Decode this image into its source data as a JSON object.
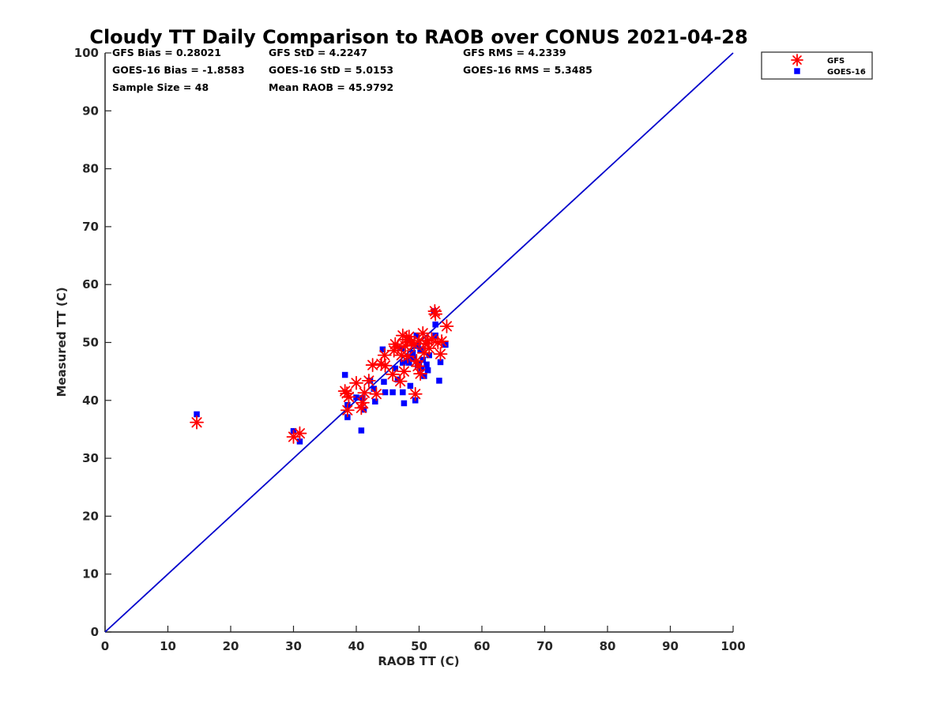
{
  "chart_data": {
    "type": "scatter",
    "title": "Cloudy TT Daily Comparison to RAOB over CONUS 2021-04-28",
    "xlabel": "RAOB TT (C)",
    "ylabel": "Measured TT (C)",
    "xlim": [
      0,
      100
    ],
    "ylim": [
      0,
      100
    ],
    "x_ticks": [
      "0",
      "10",
      "20",
      "30",
      "40",
      "50",
      "60",
      "70",
      "80",
      "90",
      "100"
    ],
    "y_ticks": [
      "0",
      "10",
      "20",
      "30",
      "40",
      "50",
      "60",
      "70",
      "80",
      "90",
      "100"
    ],
    "grid": false,
    "legend_position": "outside-top-right",
    "reference_line": {
      "x": [
        0,
        100
      ],
      "y": [
        0,
        100
      ],
      "color": "#0000cc"
    },
    "stats": [
      {
        "text": "GFS Bias = 0.28021"
      },
      {
        "text": "GFS StD = 4.2247"
      },
      {
        "text": "GFS RMS = 4.2339"
      },
      {
        "text": "GOES-16 Bias = -1.8583"
      },
      {
        "text": "GOES-16 StD = 5.0153"
      },
      {
        "text": "GOES-16 RMS = 5.3485"
      },
      {
        "text": "Sample Size = 48"
      },
      {
        "text": "Mean RAOB = 45.9792"
      }
    ],
    "series": [
      {
        "name": "GFS",
        "marker": "asterisk",
        "color": "#ff0000",
        "points": [
          [
            14.6,
            36.2
          ],
          [
            30.0,
            33.7
          ],
          [
            31.0,
            34.3
          ],
          [
            38.2,
            41.6
          ],
          [
            38.5,
            41.2
          ],
          [
            38.8,
            40.6
          ],
          [
            38.6,
            38.3
          ],
          [
            40.0,
            43.0
          ],
          [
            40.8,
            38.7
          ],
          [
            41.0,
            39.6
          ],
          [
            41.3,
            41.3
          ],
          [
            42.0,
            43.4
          ],
          [
            42.6,
            46.1
          ],
          [
            43.2,
            41.1
          ],
          [
            44.0,
            46.3
          ],
          [
            44.6,
            46.0
          ],
          [
            44.5,
            47.8
          ],
          [
            45.8,
            44.5
          ],
          [
            46.2,
            49.7
          ],
          [
            46.6,
            49.2
          ],
          [
            47.0,
            43.3
          ],
          [
            47.2,
            47.8
          ],
          [
            47.4,
            51.2
          ],
          [
            47.6,
            45.0
          ],
          [
            48.0,
            50.5
          ],
          [
            48.4,
            51.0
          ],
          [
            48.8,
            50.0
          ],
          [
            49.2,
            49.6
          ],
          [
            49.4,
            41.1
          ],
          [
            49.6,
            46.8
          ],
          [
            50.0,
            50.3
          ],
          [
            50.2,
            44.6
          ],
          [
            50.6,
            51.6
          ],
          [
            51.0,
            49.8
          ],
          [
            51.4,
            50.3
          ],
          [
            52.0,
            50.6
          ],
          [
            52.5,
            55.4
          ],
          [
            52.6,
            54.9
          ],
          [
            53.0,
            50.0
          ],
          [
            53.4,
            48.0
          ],
          [
            53.6,
            50.2
          ],
          [
            54.4,
            52.8
          ],
          [
            48.2,
            47.6
          ],
          [
            50.8,
            48.2
          ],
          [
            46.0,
            48.6
          ],
          [
            49.8,
            45.9
          ],
          [
            51.6,
            49.0
          ],
          [
            47.8,
            49.4
          ]
        ]
      },
      {
        "name": "GOES-16",
        "marker": "square",
        "color": "#0000ff",
        "points": [
          [
            14.6,
            37.6
          ],
          [
            30.0,
            34.7
          ],
          [
            31.0,
            32.9
          ],
          [
            38.2,
            44.4
          ],
          [
            38.6,
            39.2
          ],
          [
            38.6,
            37.1
          ],
          [
            40.0,
            40.5
          ],
          [
            40.8,
            34.8
          ],
          [
            41.0,
            40.4
          ],
          [
            41.2,
            38.4
          ],
          [
            42.2,
            43.4
          ],
          [
            42.8,
            42.0
          ],
          [
            43.0,
            39.8
          ],
          [
            44.2,
            48.8
          ],
          [
            44.4,
            43.2
          ],
          [
            44.6,
            41.4
          ],
          [
            45.8,
            41.4
          ],
          [
            46.2,
            45.5
          ],
          [
            46.6,
            43.6
          ],
          [
            47.2,
            49.0
          ],
          [
            47.4,
            46.5
          ],
          [
            47.4,
            41.4
          ],
          [
            47.6,
            39.5
          ],
          [
            48.0,
            46.8
          ],
          [
            48.4,
            46.5
          ],
          [
            48.6,
            42.5
          ],
          [
            48.8,
            47.6
          ],
          [
            49.0,
            48.2
          ],
          [
            49.4,
            40.0
          ],
          [
            49.6,
            51.2
          ],
          [
            49.8,
            46.0
          ],
          [
            49.8,
            49.4
          ],
          [
            50.2,
            48.8
          ],
          [
            50.4,
            45.5
          ],
          [
            50.6,
            47.0
          ],
          [
            50.8,
            44.2
          ],
          [
            51.2,
            46.2
          ],
          [
            51.4,
            45.2
          ],
          [
            51.6,
            47.8
          ],
          [
            52.4,
            55.4
          ],
          [
            52.6,
            53.1
          ],
          [
            52.6,
            51.2
          ],
          [
            53.2,
            43.4
          ],
          [
            53.4,
            46.6
          ],
          [
            54.2,
            49.6
          ],
          [
            49.2,
            47.2
          ],
          [
            50.0,
            46.4
          ],
          [
            48.2,
            50.6
          ]
        ]
      }
    ]
  }
}
